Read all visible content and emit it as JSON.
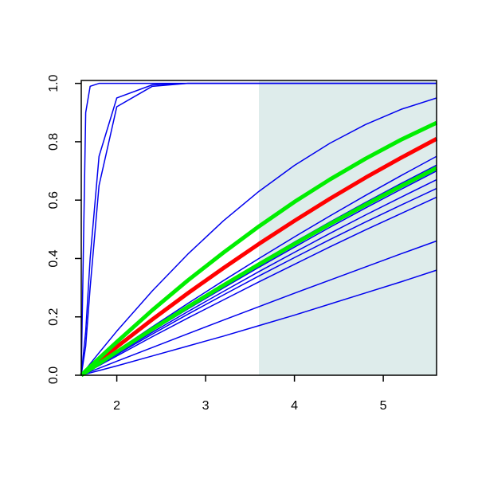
{
  "chart_data": {
    "type": "line",
    "x": [
      1.6,
      1.65,
      1.7,
      1.8,
      2,
      2.4,
      2.8,
      3.2,
      3.6,
      4,
      4.4,
      4.8,
      5.2,
      5.6
    ],
    "xlim": [
      1.6,
      5.6
    ],
    "ylim": [
      0,
      1.01
    ],
    "xticks": [
      2,
      3,
      4,
      5
    ],
    "yticks": [
      {
        "value": 0,
        "label": "0.0"
      },
      {
        "value": 0.2,
        "label": "0.2"
      },
      {
        "value": 0.4,
        "label": "0.4"
      },
      {
        "value": 0.6,
        "label": "0.6"
      },
      {
        "value": 0.8,
        "label": "0.8"
      },
      {
        "value": 1,
        "label": "1.0"
      }
    ],
    "shade_x": [
      3.6,
      5.6
    ],
    "shade_color": "#deeceb",
    "series": [
      {
        "color": "#0000ee",
        "width": 1.5,
        "values": [
          0,
          0.9,
          0.99,
          1,
          1,
          1,
          1,
          1,
          1,
          1,
          1,
          1,
          1,
          1
        ]
      },
      {
        "color": "#0000ee",
        "width": 1.5,
        "values": [
          0,
          0.15,
          0.4,
          0.75,
          0.95,
          0.995,
          1,
          1,
          1,
          1,
          1,
          1,
          1,
          1
        ]
      },
      {
        "color": "#0000ee",
        "width": 1.5,
        "values": [
          0,
          0.1,
          0.3,
          0.65,
          0.92,
          0.99,
          1,
          1,
          1,
          1,
          1,
          1,
          1,
          1
        ]
      },
      {
        "color": "#0000ee",
        "width": 1.5,
        "values": [
          0,
          0.02,
          0.039,
          0.077,
          0.151,
          0.289,
          0.415,
          0.529,
          0.63,
          0.719,
          0.795,
          0.859,
          0.911,
          0.95
        ]
      },
      {
        "color": "#0000ee",
        "width": 1.5,
        "values": [
          0,
          0.011,
          0.021,
          0.042,
          0.084,
          0.166,
          0.246,
          0.324,
          0.4,
          0.474,
          0.546,
          0.616,
          0.684,
          0.75
        ]
      },
      {
        "color": "#0000ee",
        "width": 1.5,
        "values": [
          0,
          0.01,
          0.02,
          0.041,
          0.081,
          0.16,
          0.237,
          0.312,
          0.385,
          0.456,
          0.525,
          0.592,
          0.657,
          0.72
        ]
      },
      {
        "color": "#0000ee",
        "width": 1.5,
        "values": [
          0,
          0.01,
          0.019,
          0.039,
          0.077,
          0.153,
          0.227,
          0.299,
          0.37,
          0.439,
          0.507,
          0.573,
          0.637,
          0.7
        ]
      },
      {
        "color": "#0000ee",
        "width": 1.5,
        "values": [
          0,
          0.009,
          0.019,
          0.037,
          0.074,
          0.147,
          0.218,
          0.287,
          0.355,
          0.421,
          0.486,
          0.549,
          0.61,
          0.67
        ]
      },
      {
        "color": "#0000ee",
        "width": 1.5,
        "values": [
          0,
          0.009,
          0.018,
          0.036,
          0.071,
          0.141,
          0.209,
          0.275,
          0.34,
          0.403,
          0.465,
          0.525,
          0.583,
          0.64
        ]
      },
      {
        "color": "#0000ee",
        "width": 1.5,
        "values": [
          0,
          0.008,
          0.017,
          0.033,
          0.066,
          0.132,
          0.196,
          0.258,
          0.32,
          0.38,
          0.44,
          0.498,
          0.554,
          0.61
        ]
      },
      {
        "color": "#0000ee",
        "width": 1.5,
        "values": [
          0,
          0.006,
          0.012,
          0.024,
          0.048,
          0.095,
          0.142,
          0.189,
          0.235,
          0.281,
          0.326,
          0.371,
          0.416,
          0.46
        ]
      },
      {
        "color": "#0000ee",
        "width": 1.5,
        "values": [
          0,
          0.004,
          0.008,
          0.016,
          0.032,
          0.066,
          0.1,
          0.134,
          0.17,
          0.206,
          0.244,
          0.282,
          0.32,
          0.36
        ]
      },
      {
        "color": "#ff0000",
        "width": 5,
        "values": [
          0,
          0.012,
          0.025,
          0.049,
          0.097,
          0.191,
          0.281,
          0.367,
          0.45,
          0.529,
          0.605,
          0.677,
          0.745,
          0.81
        ]
      },
      {
        "color": "#00ee00",
        "width": 5,
        "values": [
          0,
          0.015,
          0.029,
          0.058,
          0.114,
          0.223,
          0.325,
          0.42,
          0.51,
          0.594,
          0.671,
          0.742,
          0.807,
          0.865
        ]
      },
      {
        "color": "#00ee00",
        "width": 5,
        "values": [
          0,
          0.01,
          0.02,
          0.04,
          0.08,
          0.158,
          0.234,
          0.308,
          0.38,
          0.45,
          0.518,
          0.584,
          0.648,
          0.71
        ]
      }
    ]
  }
}
